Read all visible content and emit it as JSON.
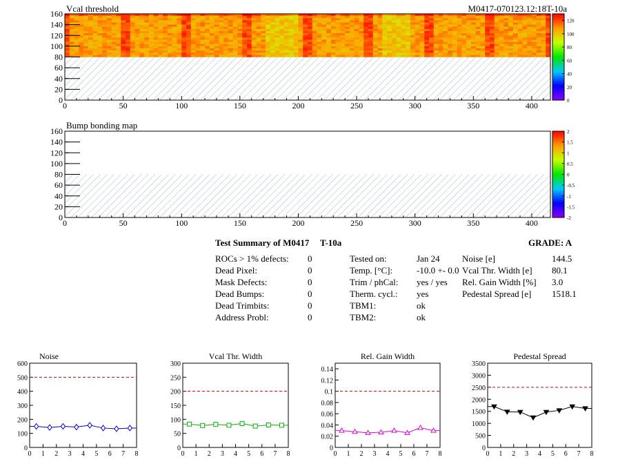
{
  "heatmap1": {
    "title": "Vcal threshold",
    "module_label": "M0417-070123.12:18T-10a",
    "xticks": [
      "0",
      "50",
      "100",
      "150",
      "200",
      "250",
      "300",
      "350",
      "400"
    ],
    "yticks": [
      "0",
      "20",
      "40",
      "60",
      "80",
      "100",
      "120",
      "140",
      "160"
    ],
    "zticks": [
      "0",
      "20",
      "40",
      "60",
      "80",
      "100",
      "120"
    ]
  },
  "heatmap2": {
    "title": "Bump bonding map",
    "xticks": [
      "0",
      "50",
      "100",
      "150",
      "200",
      "250",
      "300",
      "350",
      "400"
    ],
    "yticks": [
      "0",
      "20",
      "40",
      "60",
      "80",
      "100",
      "120",
      "140",
      "160"
    ],
    "zticks": [
      "-2",
      "-1.5",
      "-1",
      "-0.5",
      "0",
      "0.5",
      "1",
      "1.5",
      "2"
    ]
  },
  "summary": {
    "title": "Test Summary of M0417",
    "test_label": "T-10a",
    "grade": "GRADE:  A",
    "defects": [
      {
        "label": "ROCs > 1% defects:",
        "value": "0"
      },
      {
        "label": "Dead Pixel:",
        "value": "0"
      },
      {
        "label": "Mask Defects:",
        "value": "0"
      },
      {
        "label": "Dead Bumps:",
        "value": "0"
      },
      {
        "label": "Dead Trimbits:",
        "value": "0"
      },
      {
        "label": "Address Probl:",
        "value": "0"
      }
    ],
    "conditions": [
      {
        "label": "Tested on:",
        "value": "Jan 24"
      },
      {
        "label": "Temp. [°C]:",
        "value": "-10.0 +- 0.0"
      },
      {
        "label": "Trim / phCal:",
        "value": "yes / yes"
      },
      {
        "label": "Therm. cycl.:",
        "value": "yes"
      },
      {
        "label": "TBM1:",
        "value": "ok"
      },
      {
        "label": "TBM2:",
        "value": "ok"
      }
    ],
    "results": [
      {
        "label": "Noise [e]",
        "value": "144.5"
      },
      {
        "label": "Vcal Thr. Width [e]",
        "value": "80.1"
      },
      {
        "label": "Rel. Gain Width [%]",
        "value": "3.0"
      },
      {
        "label": "Pedestal Spread [e]",
        "value": "1518.1"
      }
    ]
  },
  "chart_data": [
    {
      "type": "heatmap",
      "title": "Vcal threshold",
      "xlim": [
        0,
        416
      ],
      "ylim": [
        0,
        160
      ],
      "zlim": [
        0,
        130
      ],
      "filled_rows": [
        80,
        160
      ],
      "note_lower_half": "hatched (no data)",
      "typical_value_range": [
        95,
        125
      ],
      "colormap": "rainbow"
    },
    {
      "type": "heatmap",
      "title": "Bump bonding map",
      "xlim": [
        0,
        416
      ],
      "ylim": [
        0,
        160
      ],
      "zlim": [
        -2,
        2
      ],
      "colormap": "rainbow"
    },
    {
      "type": "line",
      "title": "Noise",
      "x": [
        0.5,
        1.5,
        2.5,
        3.5,
        4.5,
        5.5,
        6.5,
        7.5
      ],
      "values": [
        150,
        142,
        150,
        145,
        158,
        138,
        133,
        138
      ],
      "xlim": [
        0,
        8
      ],
      "ylim": [
        0,
        600
      ],
      "yticks": [
        "0",
        "100",
        "200",
        "300",
        "400",
        "500",
        "600"
      ],
      "limit": 500,
      "color": "#0000cc",
      "marker": "diamond"
    },
    {
      "type": "line",
      "title": "Vcal Thr. Width",
      "x": [
        0.5,
        1.5,
        2.5,
        3.5,
        4.5,
        5.5,
        6.5,
        7.5
      ],
      "values": [
        83,
        78,
        82,
        79,
        85,
        76,
        80,
        79
      ],
      "xlim": [
        0,
        8
      ],
      "ylim": [
        0,
        300
      ],
      "yticks": [
        "0",
        "50",
        "100",
        "150",
        "200",
        "250",
        "300"
      ],
      "limit": 200,
      "color": "#00b000",
      "marker": "square"
    },
    {
      "type": "line",
      "title": "Rel. Gain Width",
      "x": [
        0.5,
        1.5,
        2.5,
        3.5,
        4.5,
        5.5,
        6.5,
        7.5
      ],
      "values": [
        0.03,
        0.028,
        0.026,
        0.027,
        0.03,
        0.026,
        0.035,
        0.03
      ],
      "xlim": [
        0,
        8
      ],
      "ylim": [
        0,
        0.15
      ],
      "yticks": [
        "0",
        "0.02",
        "0.04",
        "0.06",
        "0.08",
        "0.1",
        "0.12",
        "0.14"
      ],
      "limit": 0.1,
      "color": "#dd00dd",
      "marker": "triangle-up"
    },
    {
      "type": "line",
      "title": "Pedestal Spread",
      "x": [
        0.5,
        1.5,
        2.5,
        3.5,
        4.5,
        5.5,
        6.5,
        7.5
      ],
      "values": [
        1700,
        1480,
        1470,
        1240,
        1470,
        1540,
        1700,
        1620
      ],
      "xlim": [
        0,
        8
      ],
      "ylim": [
        0,
        3500
      ],
      "yticks": [
        "0",
        "500",
        "1000",
        "1500",
        "2000",
        "2500",
        "3000",
        "3500"
      ],
      "limit": 2500,
      "color": "#000000",
      "marker": "triangle-down"
    }
  ],
  "small_xticks": [
    "0",
    "1",
    "2",
    "3",
    "4",
    "5",
    "6",
    "7",
    "8"
  ]
}
